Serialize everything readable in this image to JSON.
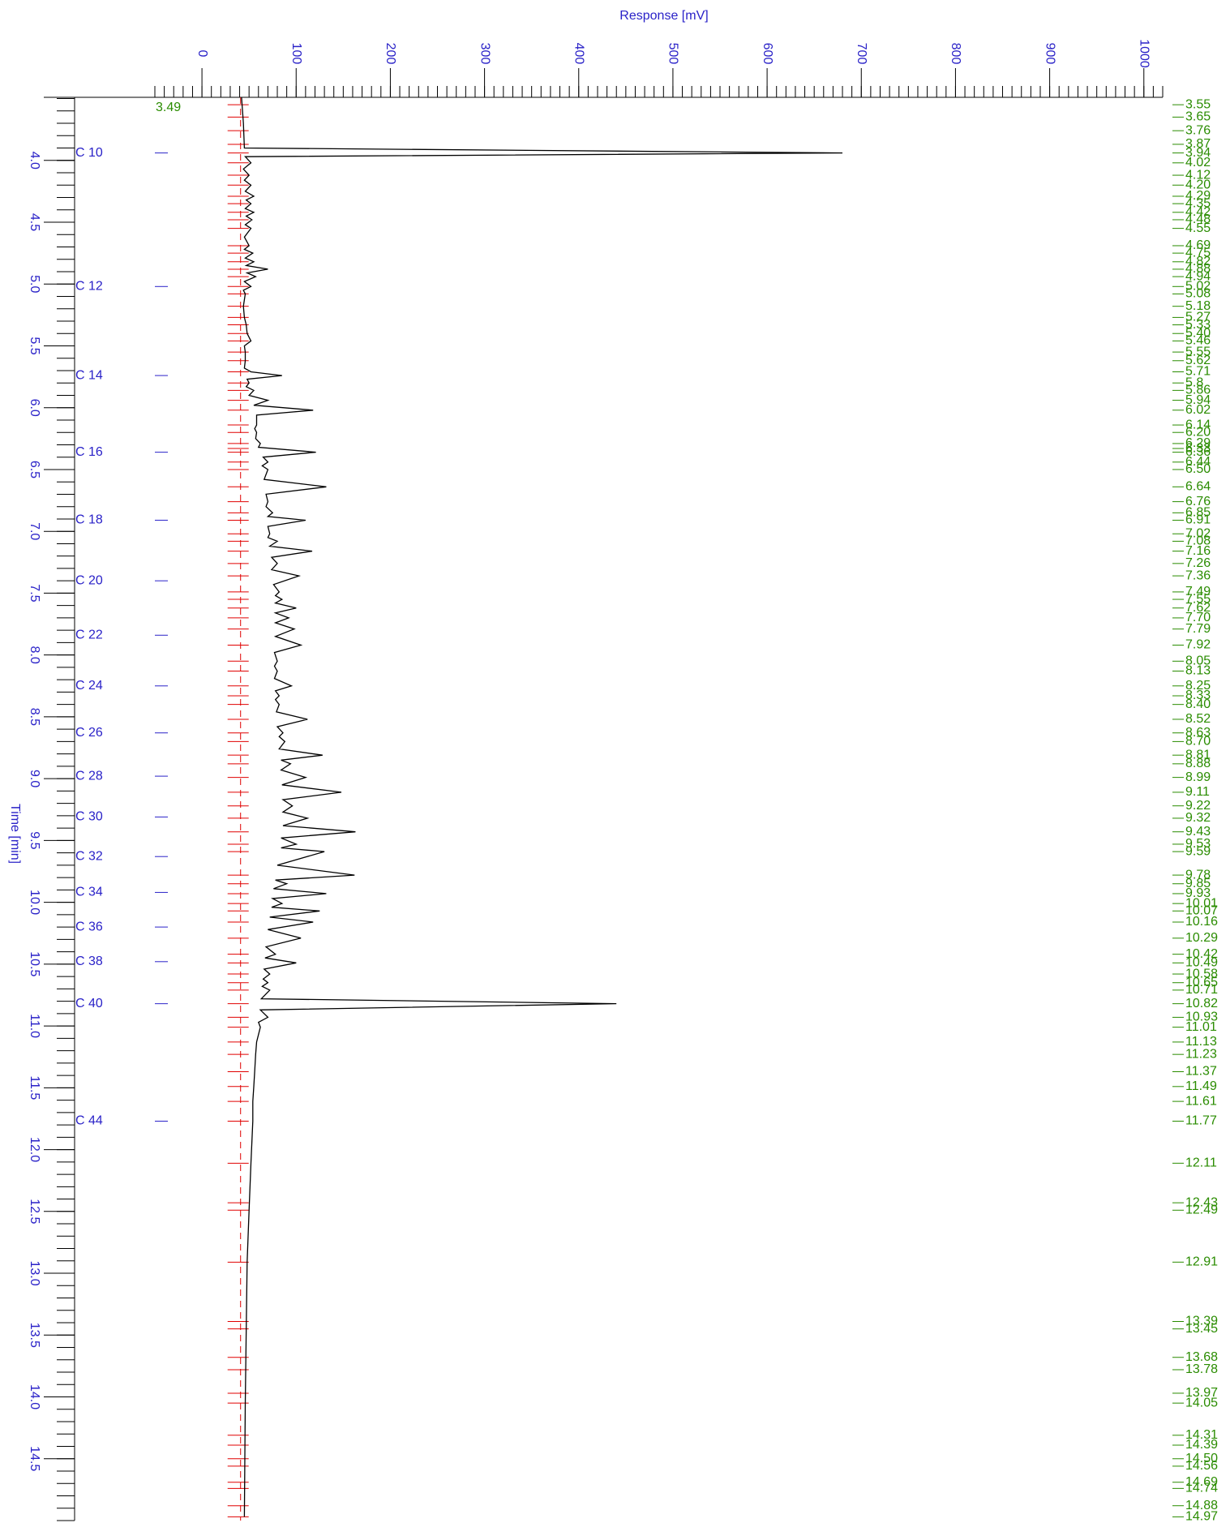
{
  "chart_data": {
    "type": "line",
    "orientation": "rotated",
    "xlabel": "Time [min]",
    "ylabel": "Response [mV]",
    "xlim": [
      3.49,
      15.0
    ],
    "xticks": [
      {
        "value": 4,
        "label": "4.0"
      },
      4.5,
      {
        "value": 5,
        "label": "5.0"
      },
      5.5,
      {
        "value": 6,
        "label": "6.0"
      },
      6.5,
      {
        "value": 7,
        "label": "7.0"
      },
      7.5,
      {
        "value": 8,
        "label": "8.0"
      },
      8.5,
      {
        "value": 9,
        "label": "9.0"
      },
      9.5,
      {
        "value": 10,
        "label": "10.0"
      },
      10.5,
      {
        "value": 11,
        "label": "11.0"
      },
      11.5,
      {
        "value": 12,
        "label": "12.0"
      },
      12.5,
      {
        "value": 13,
        "label": "13.0"
      },
      13.5,
      {
        "value": 14,
        "label": "14.0"
      },
      14.5
    ],
    "ylim": [
      -50,
      1020
    ],
    "yticks": [
      0,
      100,
      200,
      300,
      400,
      500,
      600,
      700,
      800,
      900,
      1000
    ],
    "baseline": 41,
    "trace_color": "#000000",
    "marker_color": "#e00000",
    "axis_color": "#2a22c8",
    "peak_label_color": "#2a8c00",
    "x": [
      3.49,
      3.7,
      3.9,
      3.94,
      3.97,
      4.02,
      4.07,
      4.12,
      4.16,
      4.2,
      4.25,
      4.29,
      4.32,
      4.35,
      4.39,
      4.42,
      4.45,
      4.48,
      4.52,
      4.55,
      4.62,
      4.69,
      4.72,
      4.75,
      4.79,
      4.82,
      4.85,
      4.88,
      4.91,
      4.94,
      4.98,
      5.02,
      5.05,
      5.08,
      5.18,
      5.27,
      5.33,
      5.4,
      5.46,
      5.5,
      5.55,
      5.62,
      5.68,
      5.71,
      5.74,
      5.77,
      5.8,
      5.83,
      5.86,
      5.9,
      5.94,
      5.98,
      6.02,
      6.06,
      6.14,
      6.17,
      6.2,
      6.25,
      6.29,
      6.32,
      6.36,
      6.4,
      6.44,
      6.47,
      6.5,
      6.58,
      6.64,
      6.7,
      6.76,
      6.8,
      6.85,
      6.88,
      6.91,
      6.96,
      7.02,
      7.05,
      7.08,
      7.12,
      7.16,
      7.21,
      7.26,
      7.31,
      7.36,
      7.43,
      7.49,
      7.52,
      7.55,
      7.58,
      7.62,
      7.66,
      7.7,
      7.74,
      7.79,
      7.85,
      7.92,
      7.98,
      8.05,
      8.09,
      8.13,
      8.19,
      8.25,
      8.29,
      8.33,
      8.36,
      8.4,
      8.46,
      8.52,
      8.58,
      8.63,
      8.66,
      8.7,
      8.76,
      8.81,
      8.85,
      8.88,
      8.93,
      8.99,
      9.05,
      9.11,
      9.17,
      9.22,
      9.27,
      9.32,
      9.38,
      9.43,
      9.48,
      9.53,
      9.56,
      9.59,
      9.7,
      9.78,
      9.82,
      9.85,
      9.89,
      9.93,
      9.97,
      10.01,
      10.04,
      10.07,
      10.12,
      10.16,
      10.22,
      10.29,
      10.36,
      10.42,
      10.45,
      10.49,
      10.54,
      10.58,
      10.62,
      10.65,
      10.68,
      10.71,
      10.78,
      10.82,
      10.87,
      10.93,
      10.97,
      11.01,
      11.13,
      11.23,
      11.37,
      11.49,
      11.61,
      11.77,
      12.11,
      12.49,
      12.91,
      13.45,
      14.05,
      14.97
    ],
    "series": [
      {
        "name": "Response",
        "color": "#000000",
        "values": [
          42,
          44,
          45,
          680,
          46,
          52,
          44,
          50,
          45,
          52,
          46,
          55,
          47,
          52,
          46,
          55,
          47,
          53,
          46,
          52,
          45,
          50,
          45,
          54,
          46,
          55,
          47,
          70,
          48,
          57,
          45,
          52,
          44,
          46,
          44,
          45,
          47,
          48,
          52,
          45,
          46,
          46,
          45,
          52,
          85,
          48,
          50,
          47,
          55,
          50,
          70,
          55,
          118,
          58,
          58,
          56,
          58,
          57,
          62,
          60,
          121,
          65,
          70,
          64,
          70,
          66,
          132,
          68,
          70,
          68,
          75,
          70,
          110,
          70,
          72,
          70,
          80,
          72,
          117,
          74,
          80,
          74,
          103,
          76,
          82,
          78,
          85,
          78,
          100,
          78,
          92,
          78,
          98,
          78,
          105,
          77,
          80,
          77,
          80,
          77,
          95,
          78,
          82,
          78,
          82,
          79,
          112,
          80,
          86,
          82,
          88,
          82,
          128,
          84,
          94,
          84,
          110,
          85,
          148,
          86,
          96,
          86,
          112,
          86,
          163,
          84,
          100,
          84,
          130,
          80,
          162,
          78,
          90,
          76,
          132,
          75,
          85,
          74,
          125,
          72,
          118,
          70,
          105,
          68,
          78,
          67,
          100,
          66,
          72,
          65,
          70,
          64,
          72,
          63,
          440,
          62,
          70,
          60,
          62,
          58,
          57,
          56,
          55,
          54,
          54,
          52,
          50,
          48,
          47,
          46,
          45
        ]
      }
    ],
    "peaks": [
      3.55,
      3.65,
      3.76,
      3.87,
      3.94,
      4.02,
      4.12,
      {
        "value": 4.2,
        "label": "4.20"
      },
      4.29,
      4.35,
      4.42,
      4.48,
      4.55,
      4.69,
      4.75,
      4.82,
      4.88,
      4.94,
      5.02,
      5.08,
      5.18,
      5.27,
      5.33,
      {
        "value": 5.4,
        "label": "5.40"
      },
      5.46,
      5.55,
      5.62,
      5.71,
      5.8,
      5.86,
      5.94,
      6.02,
      6.14,
      {
        "value": 6.2,
        "label": "6.20"
      },
      6.29,
      6.33,
      6.36,
      6.44,
      {
        "value": 6.5,
        "label": "6.50"
      },
      6.64,
      6.76,
      6.85,
      6.91,
      7.02,
      7.08,
      7.16,
      7.26,
      7.36,
      7.49,
      7.55,
      7.62,
      {
        "value": 7.7,
        "label": "7.70"
      },
      7.79,
      7.92,
      8.05,
      8.13,
      8.25,
      8.33,
      {
        "value": 8.4,
        "label": "8.40"
      },
      8.52,
      8.63,
      {
        "value": 8.7,
        "label": "8.70"
      },
      8.81,
      8.88,
      8.99,
      9.11,
      9.22,
      9.32,
      9.43,
      9.53,
      9.59,
      9.78,
      9.85,
      9.93,
      10.01,
      10.07,
      10.16,
      10.29,
      10.42,
      10.49,
      10.58,
      10.65,
      10.71,
      10.82,
      10.93,
      11.01,
      11.13,
      11.23,
      11.37,
      11.49,
      11.61,
      11.77,
      12.11,
      12.43,
      12.49,
      12.91,
      13.39,
      13.45,
      13.68,
      13.78,
      13.97,
      14.05,
      14.31,
      14.39,
      {
        "value": 14.5,
        "label": "14.50"
      },
      14.56,
      14.69,
      14.74,
      14.88,
      14.97
    ],
    "carbon_markers": [
      {
        "label": "C 10",
        "time": 3.94
      },
      {
        "label": "C 12",
        "time": 5.02
      },
      {
        "label": "C 14",
        "time": 5.74
      },
      {
        "label": "C 16",
        "time": 6.36
      },
      {
        "label": "C 18",
        "time": 6.91
      },
      {
        "label": "C 20",
        "time": 7.4
      },
      {
        "label": "C 22",
        "time": 7.84
      },
      {
        "label": "C 24",
        "time": 8.25
      },
      {
        "label": "C 26",
        "time": 8.63
      },
      {
        "label": "C 28",
        "time": 8.98
      },
      {
        "label": "C 30",
        "time": 9.31
      },
      {
        "label": "C 32",
        "time": 9.63
      },
      {
        "label": "C 34",
        "time": 9.92
      },
      {
        "label": "C 36",
        "time": 10.2
      },
      {
        "label": "C 38",
        "time": 10.48
      },
      {
        "label": "C 40",
        "time": 10.82
      },
      {
        "label": "C 44",
        "time": 11.77
      }
    ]
  }
}
